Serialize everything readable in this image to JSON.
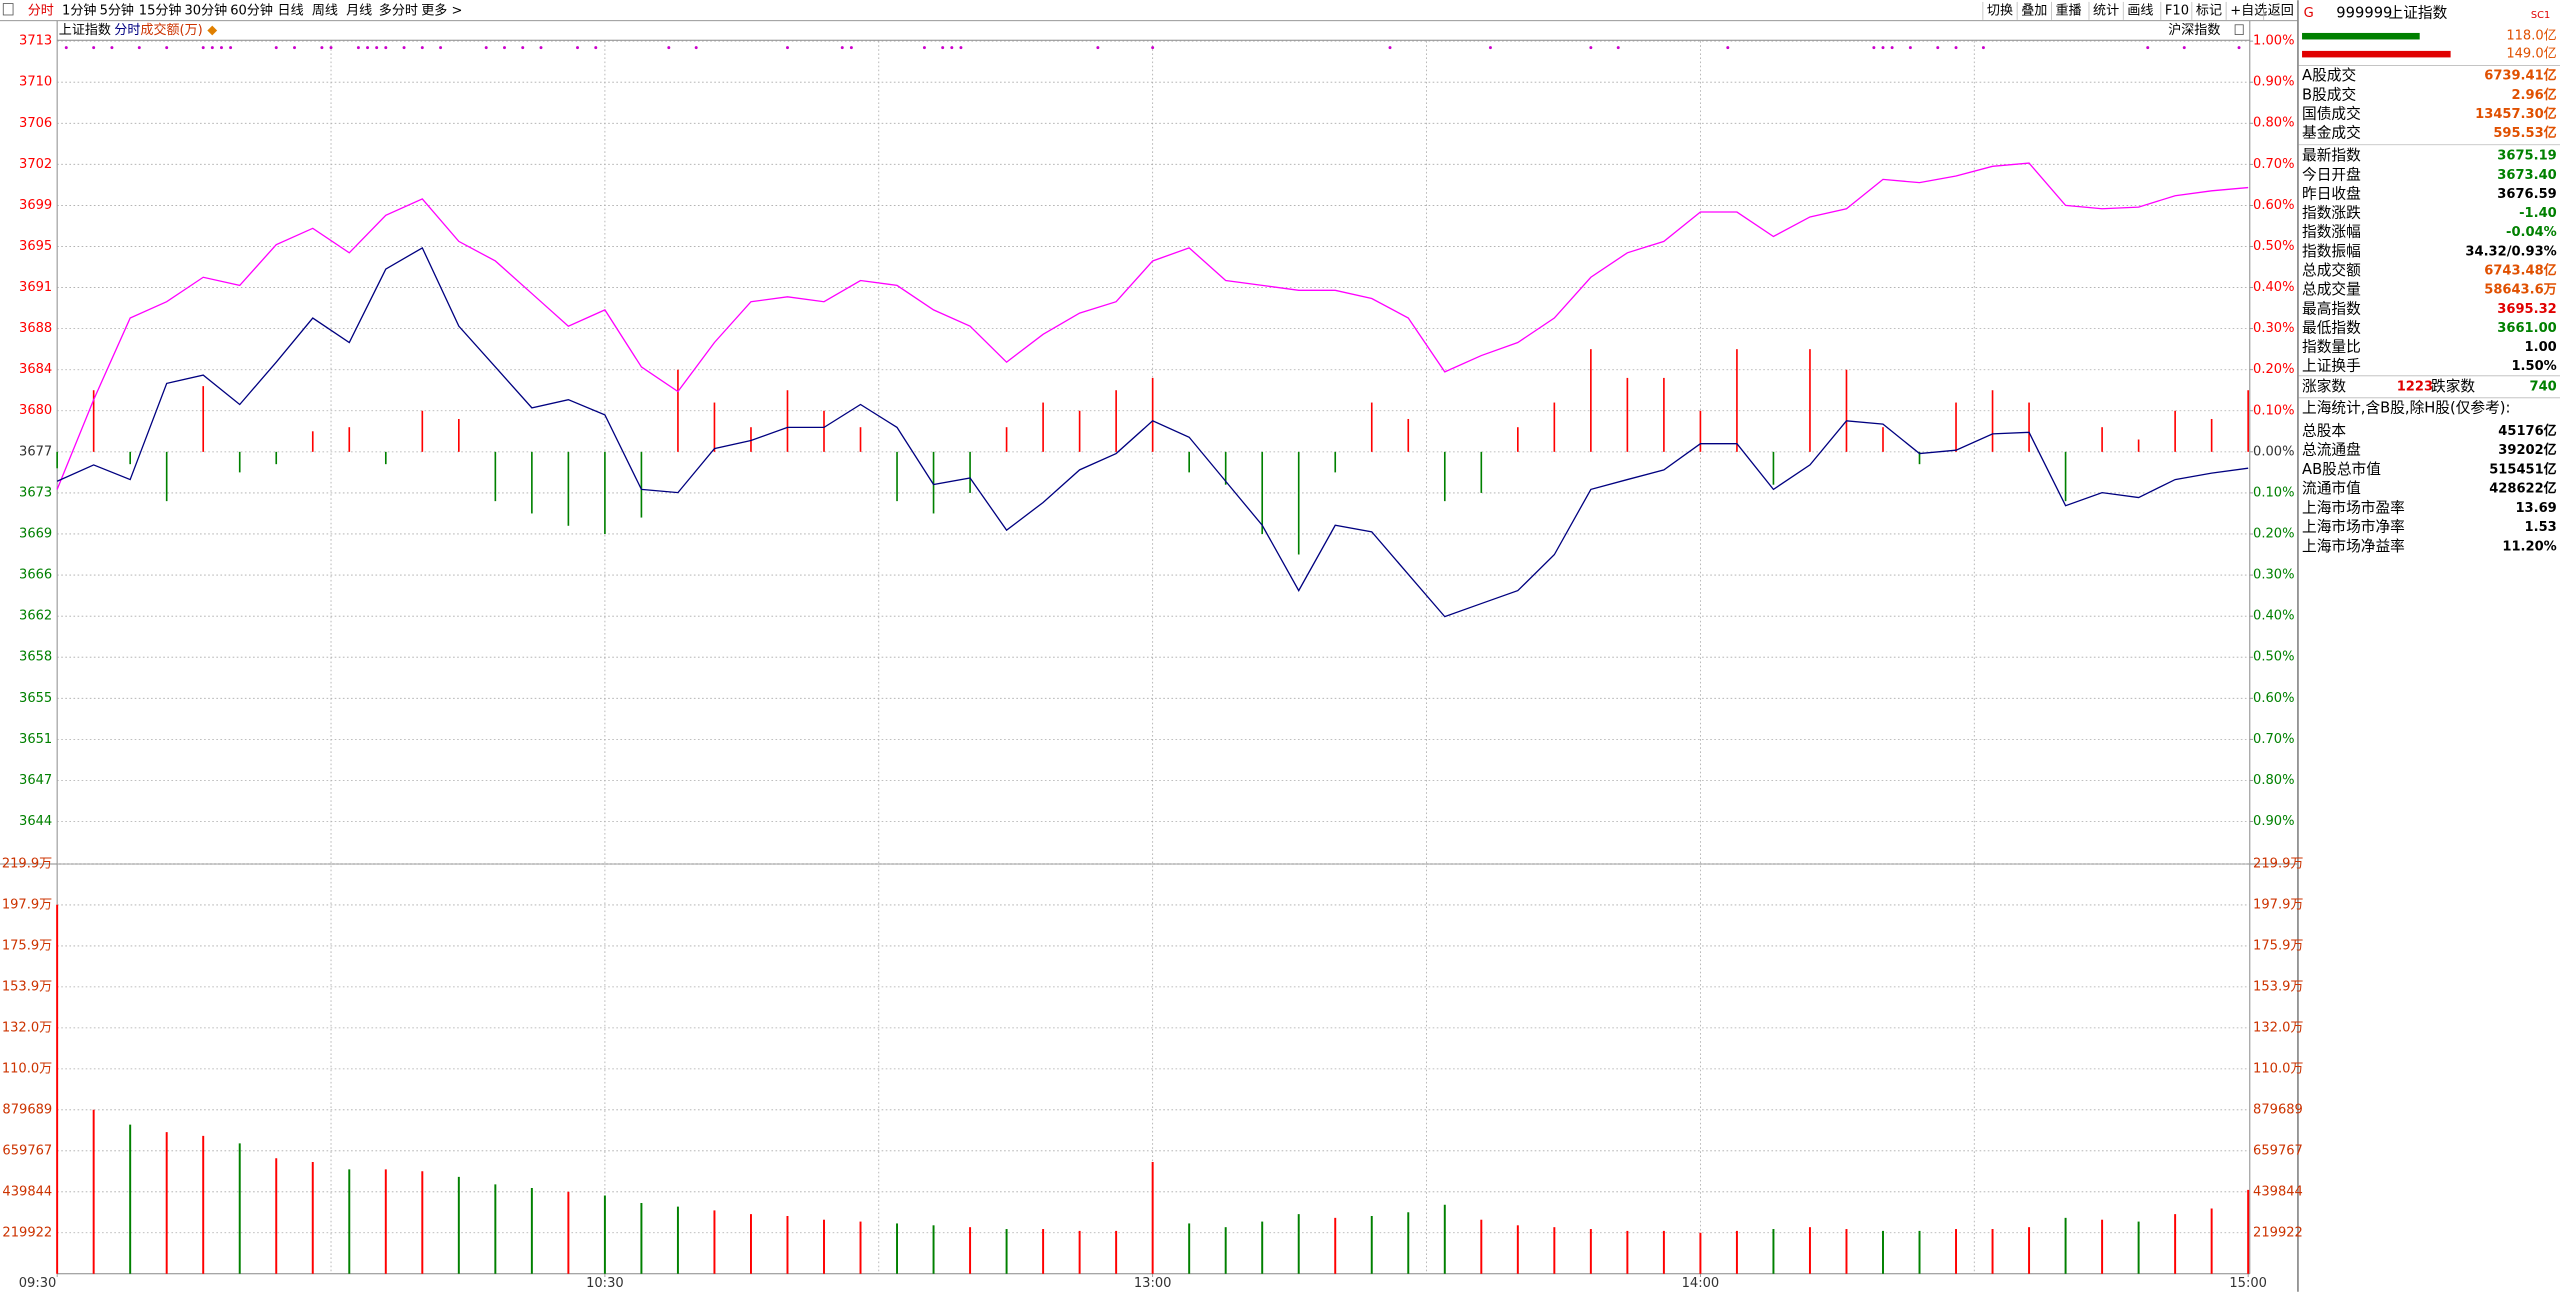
{
  "toolbar": {
    "left": [
      "分时",
      "1分钟",
      "5分钟",
      "15分钟",
      "30分钟",
      "60分钟",
      "日线",
      "周线",
      "月线",
      "多分时",
      "更多 >"
    ],
    "right": [
      "切换",
      "叠加",
      "重播",
      "统计",
      "画线",
      "F10",
      "标记",
      "+自选",
      "返回"
    ]
  },
  "chart_data": {
    "type": "intraday",
    "mode": "分时",
    "volume_label": "成交额(万)",
    "grid": true,
    "up_color": "#ff0000",
    "down_color": "#008000",
    "x": [
      0,
      4,
      8,
      12,
      16,
      20,
      24,
      28,
      32,
      36,
      40,
      44,
      48,
      52,
      56,
      60,
      64,
      68,
      72,
      76,
      80,
      84,
      88,
      92,
      96,
      100,
      104,
      108,
      112,
      116,
      120,
      124,
      128,
      132,
      136,
      140,
      144,
      148,
      152,
      156,
      160,
      164,
      168,
      172,
      176,
      180,
      184,
      188,
      192,
      196,
      200,
      204,
      208,
      212,
      216,
      220,
      224,
      228,
      232,
      236,
      240
    ],
    "xlim": [
      0,
      240
    ],
    "xticks": [
      {
        "value": 0,
        "label": "09:30"
      },
      {
        "value": 60,
        "label": "10:30"
      },
      {
        "value": 120,
        "label": "13:00"
      },
      {
        "value": 180,
        "label": "14:00"
      },
      {
        "value": 240,
        "label": "15:00"
      }
    ],
    "xgrid": [
      30,
      60,
      90,
      120,
      150,
      180,
      210
    ],
    "ylim": [
      3643.5,
      3713.36
    ],
    "yticks": [
      {
        "value": 3713.36,
        "label": "3713"
      },
      {
        "value": 3709.68,
        "label": "3710"
      },
      {
        "value": 3706.0,
        "label": "3706"
      },
      {
        "value": 3702.33,
        "label": "3702"
      },
      {
        "value": 3698.65,
        "label": "3699"
      },
      {
        "value": 3694.97,
        "label": "3695"
      },
      {
        "value": 3691.3,
        "label": "3691"
      },
      {
        "value": 3687.62,
        "label": "3688"
      },
      {
        "value": 3683.94,
        "label": "3684"
      },
      {
        "value": 3680.27,
        "label": "3680"
      },
      {
        "value": 3676.59,
        "label": "3677"
      },
      {
        "value": 3672.91,
        "label": "3673"
      },
      {
        "value": 3669.24,
        "label": "3669"
      },
      {
        "value": 3665.56,
        "label": "3666"
      },
      {
        "value": 3661.88,
        "label": "3662"
      },
      {
        "value": 3658.21,
        "label": "3658"
      },
      {
        "value": 3654.53,
        "label": "3655"
      },
      {
        "value": 3650.85,
        "label": "3651"
      },
      {
        "value": 3647.18,
        "label": "3647"
      },
      {
        "value": 3643.5,
        "label": "3644"
      }
    ],
    "y2lim": [
      -0.9,
      1.0
    ],
    "y2ticks": [
      {
        "value": 1.0,
        "label": "1.00%"
      },
      {
        "value": 0.9,
        "label": "0.90%"
      },
      {
        "value": 0.8,
        "label": "0.80%"
      },
      {
        "value": 0.7,
        "label": "0.70%"
      },
      {
        "value": 0.6,
        "label": "0.60%"
      },
      {
        "value": 0.5,
        "label": "0.50%"
      },
      {
        "value": 0.4,
        "label": "0.40%"
      },
      {
        "value": 0.3,
        "label": "0.30%"
      },
      {
        "value": 0.2,
        "label": "0.20%"
      },
      {
        "value": 0.1,
        "label": "0.10%"
      },
      {
        "value": 0,
        "label": "0.00%"
      },
      {
        "value": -0.1,
        "label": "0.10%"
      },
      {
        "value": -0.2,
        "label": "0.20%"
      },
      {
        "value": -0.3,
        "label": "0.30%"
      },
      {
        "value": -0.4,
        "label": "0.40%"
      },
      {
        "value": -0.5,
        "label": "0.50%"
      },
      {
        "value": -0.6,
        "label": "0.60%"
      },
      {
        "value": -0.7,
        "label": "0.70%"
      },
      {
        "value": -0.8,
        "label": "0.80%"
      },
      {
        "value": -0.9,
        "label": "0.90%"
      }
    ],
    "series": [
      {
        "name": "上证指数",
        "color": "#000080",
        "values": [
          3673.96,
          3675.42,
          3674.11,
          3682.72,
          3683.46,
          3680.83,
          3684.62,
          3688.57,
          3686.38,
          3692.95,
          3694.85,
          3687.84,
          3684.19,
          3680.53,
          3681.26,
          3679.9,
          3673.23,
          3672.94,
          3676.88,
          3677.61,
          3678.78,
          3678.78,
          3680.83,
          3678.78,
          3673.67,
          3674.25,
          3669.58,
          3672.06,
          3674.98,
          3676.44,
          3679.37,
          3677.9,
          3673.96,
          3670.02,
          3664.17,
          3670.02,
          3669.43,
          3665.63,
          3661.84,
          3663.01,
          3664.17,
          3667.39,
          3673.23,
          3674.11,
          3674.98,
          3677.32,
          3677.32,
          3673.23,
          3675.42,
          3679.37,
          3679.07,
          3676.44,
          3676.74,
          3678.2,
          3678.34,
          3671.77,
          3672.94,
          3672.5,
          3674.11,
          3674.69,
          3675.13
        ]
      },
      {
        "name": "沪深指数",
        "color": "#ff00ff",
        "values": [
          3673.23,
          3681.26,
          3688.57,
          3690.03,
          3692.22,
          3691.49,
          3695.14,
          3696.6,
          3694.41,
          3697.77,
          3699.23,
          3695.43,
          3693.68,
          3690.76,
          3687.84,
          3689.3,
          3684.19,
          3681.99,
          3686.38,
          3690.03,
          3690.47,
          3690.03,
          3691.93,
          3691.49,
          3689.3,
          3687.84,
          3684.62,
          3687.11,
          3689.01,
          3690.03,
          3693.68,
          3694.85,
          3691.93,
          3691.49,
          3691.05,
          3691.05,
          3690.32,
          3688.57,
          3683.75,
          3685.21,
          3686.38,
          3688.57,
          3692.22,
          3694.41,
          3695.43,
          3698.06,
          3698.06,
          3695.87,
          3697.62,
          3698.35,
          3700.98,
          3700.69,
          3701.28,
          3702.15,
          3702.44,
          3698.65,
          3698.35,
          3698.5,
          3699.52,
          3699.96,
          3700.25
        ]
      }
    ],
    "strength": {
      "axis": "y2",
      "values": [
        -0.04,
        0.15,
        -0.03,
        -0.12,
        0.16,
        -0.05,
        -0.03,
        0.05,
        0.06,
        -0.03,
        0.1,
        0.08,
        -0.12,
        -0.15,
        -0.18,
        -0.2,
        -0.16,
        0.2,
        0.12,
        0.06,
        0.15,
        0.1,
        0.06,
        -0.12,
        -0.15,
        -0.1,
        0.06,
        0.12,
        0.1,
        0.15,
        0.18,
        -0.05,
        -0.08,
        -0.2,
        -0.25,
        -0.05,
        0.12,
        0.08,
        -0.12,
        -0.1,
        0.06,
        0.12,
        0.25,
        0.18,
        0.18,
        0.1,
        0.25,
        -0.08,
        0.25,
        0.2,
        0.06,
        -0.03,
        0.12,
        0.15,
        0.12,
        -0.12,
        0.06,
        0.03,
        0.1,
        0.08,
        0.15
      ]
    },
    "markers": {
      "color": "#cc00cc",
      "x": [
        1,
        4,
        6,
        9,
        12,
        16,
        17,
        18,
        19,
        24,
        26,
        29,
        30,
        33,
        34,
        35,
        36,
        38,
        40,
        42,
        47,
        49,
        51,
        53,
        57,
        59,
        67,
        70,
        80,
        86,
        87,
        95,
        97,
        98,
        99,
        114,
        120,
        146,
        157,
        168,
        171,
        183,
        199,
        200,
        201,
        203,
        206,
        208,
        211,
        229,
        233,
        239
      ]
    },
    "volume": {
      "ylim": [
        0,
        2199222
      ],
      "yticks": [
        {
          "value": 2199222,
          "label": "219.9万"
        },
        {
          "value": 1979300,
          "label": "197.9万"
        },
        {
          "value": 1759378,
          "label": "175.9万"
        },
        {
          "value": 1539455,
          "label": "153.9万"
        },
        {
          "value": 1319533,
          "label": "132.0万"
        },
        {
          "value": 1099611,
          "label": "110.0万"
        },
        879689,
        659767,
        439844,
        219922
      ],
      "label_color": "#cc3300",
      "values": [
        1980000,
        880000,
        800000,
        760000,
        740000,
        700000,
        620000,
        600000,
        560000,
        560000,
        550000,
        520000,
        480000,
        460000,
        440000,
        420000,
        380000,
        360000,
        340000,
        320000,
        310000,
        290000,
        280000,
        270000,
        260000,
        250000,
        240000,
        240000,
        230000,
        230000,
        600000,
        270000,
        250000,
        280000,
        320000,
        300000,
        310000,
        330000,
        370000,
        290000,
        260000,
        250000,
        240000,
        230000,
        230000,
        220000,
        230000,
        240000,
        250000,
        240000,
        230000,
        230000,
        240000,
        240000,
        250000,
        300000,
        290000,
        280000,
        320000,
        350000,
        450000
      ]
    }
  },
  "panel": {
    "badge": "G",
    "code": "999999",
    "name": "上证指数",
    "tag": "SC1",
    "flow": {
      "values": [
        118.0,
        149.0
      ],
      "value_labels": [
        "118.0亿",
        "149.0亿"
      ],
      "colors": [
        "#008000",
        "#e00000"
      ]
    },
    "trading": [
      {
        "label": "A股成交",
        "value": "6739.41亿",
        "color": "#e05000"
      },
      {
        "label": "B股成交",
        "value": "2.96亿",
        "color": "#e05000"
      },
      {
        "label": "国债成交",
        "value": "13457.30亿",
        "color": "#e05000"
      },
      {
        "label": "基金成交",
        "value": "595.53亿",
        "color": "#e05000"
      }
    ],
    "quote": [
      {
        "label": "最新指数",
        "value": "3675.19",
        "color": "#008000"
      },
      {
        "label": "今日开盘",
        "value": "3673.40",
        "color": "#008000"
      },
      {
        "label": "昨日收盘",
        "value": "3676.59",
        "color": "#000000"
      },
      {
        "label": "指数涨跌",
        "value": "-1.40",
        "color": "#008000"
      },
      {
        "label": "指数涨幅",
        "value": "-0.04%",
        "color": "#008000"
      },
      {
        "label": "指数振幅",
        "value": "34.32/0.93%",
        "color": "#000000"
      },
      {
        "label": "总成交额",
        "value": "6743.48亿",
        "color": "#e05000"
      },
      {
        "label": "总成交量",
        "value": "58643.6万",
        "color": "#e05000"
      },
      {
        "label": "最高指数",
        "value": "3695.32",
        "color": "#e00000"
      },
      {
        "label": "最低指数",
        "value": "3661.00",
        "color": "#008000"
      },
      {
        "label": "指数量比",
        "value": "1.00",
        "color": "#000000"
      },
      {
        "label": "上证换手",
        "value": "1.50%",
        "color": "#000000"
      }
    ],
    "breadth": {
      "up_label": "涨家数",
      "up": "1223",
      "down_label": "跌家数",
      "down": "740"
    },
    "note": "上海统计,含B股,除H股(仅参考):",
    "stats": [
      {
        "label": "总股本",
        "value": "45176亿"
      },
      {
        "label": "总流通盘",
        "value": "39202亿"
      },
      {
        "label": "AB股总市值",
        "value": "515451亿"
      },
      {
        "label": "流通市值",
        "value": "428622亿"
      },
      {
        "label": "上海市场市盈率",
        "value": "13.69"
      },
      {
        "label": "上海市场市净率",
        "value": "1.53"
      },
      {
        "label": "上海市场净益率",
        "value": "11.20%"
      }
    ]
  }
}
